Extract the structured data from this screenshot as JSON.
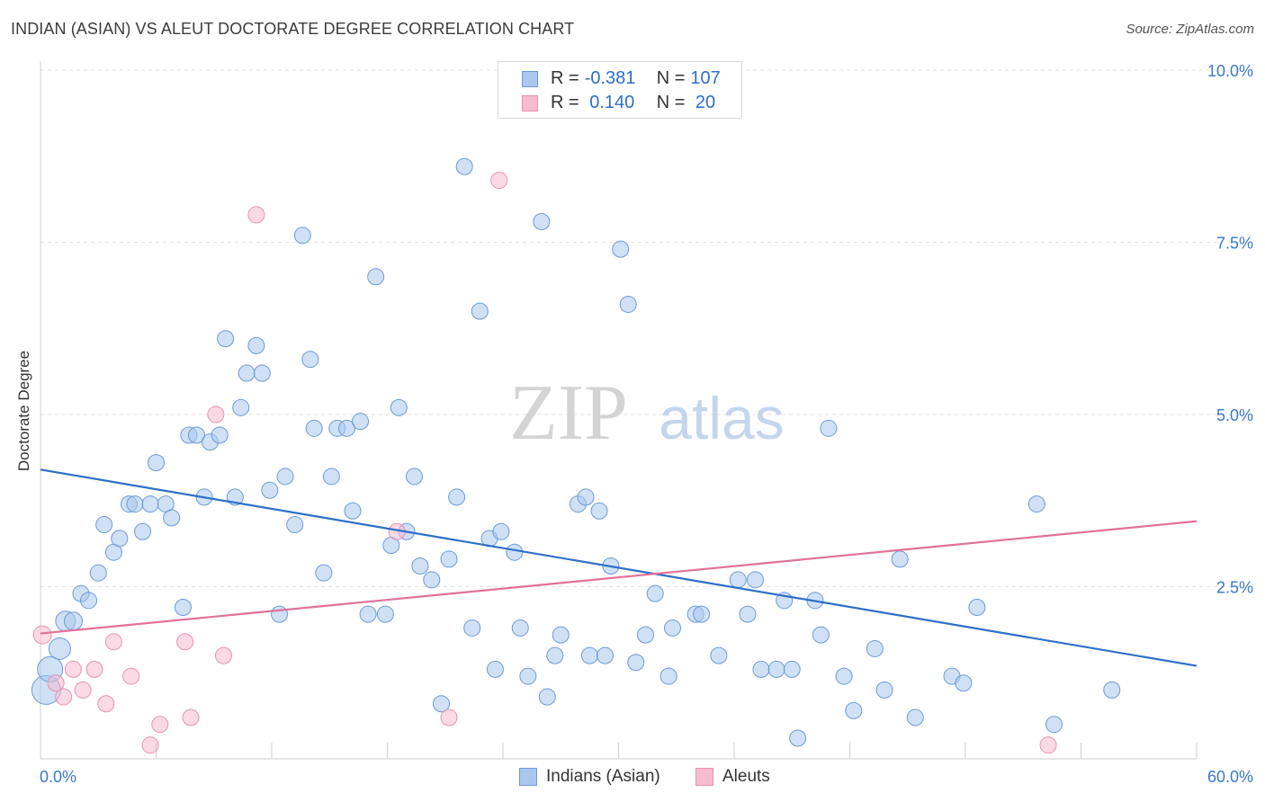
{
  "header": {
    "title": "INDIAN (ASIAN) VS ALEUT DOCTORATE DEGREE CORRELATION CHART",
    "source": "Source: ZipAtlas.com"
  },
  "watermark": {
    "zip": "ZIP",
    "atlas": "atlas"
  },
  "legend_top": {
    "rows": [
      {
        "r_label": "R = ",
        "r_value": "-0.381",
        "n_label": "N = ",
        "n_value": "107",
        "color": "#aac8ee",
        "border": "#6c9ad6"
      },
      {
        "r_label": "R = ",
        "r_value": " 0.140",
        "n_label": "N = ",
        "n_value": " 20",
        "color": "#f7bcd0",
        "border": "#e891ae"
      }
    ]
  },
  "legend_bottom": {
    "items": [
      {
        "label": "Indians (Asian)",
        "color": "#aac8ee",
        "border": "#6c9ad6"
      },
      {
        "label": "Aleuts",
        "color": "#f7bcd0",
        "border": "#e891ae"
      }
    ]
  },
  "chart_data": {
    "type": "scatter",
    "title": "INDIAN (ASIAN) VS ALEUT DOCTORATE DEGREE CORRELATION CHART",
    "xlabel": "",
    "ylabel": "Doctorate Degree",
    "xlim": [
      0,
      60
    ],
    "ylim": [
      0,
      10
    ],
    "x_tick_labels": [
      "0.0%",
      "60.0%"
    ],
    "y_tick_labels": [
      "2.5%",
      "5.0%",
      "7.5%",
      "10.0%"
    ],
    "y_ticks": [
      2.5,
      5.0,
      7.5,
      10.0
    ],
    "grid": true,
    "legend_position": "top-center",
    "series": [
      {
        "name": "Indians (Asian)",
        "color": "#aac8ee",
        "stroke": "#6c9ad6",
        "trend": {
          "x": [
            0,
            60
          ],
          "y": [
            4.2,
            1.35
          ],
          "color": "#2d6fc7"
        },
        "points": [
          [
            0.3,
            1.0,
            16
          ],
          [
            0.5,
            1.3,
            14
          ],
          [
            1.0,
            1.6,
            12
          ],
          [
            1.3,
            2.0,
            11
          ],
          [
            1.7,
            2.0,
            10
          ],
          [
            2.1,
            2.4,
            9
          ],
          [
            2.5,
            2.3,
            9
          ],
          [
            3.0,
            2.7,
            9
          ],
          [
            3.3,
            3.4,
            9
          ],
          [
            3.8,
            3.0,
            9
          ],
          [
            4.1,
            3.2,
            9
          ],
          [
            4.6,
            3.7,
            9
          ],
          [
            4.9,
            3.7,
            9
          ],
          [
            5.3,
            3.3,
            9
          ],
          [
            5.7,
            3.7,
            9
          ],
          [
            6.0,
            4.3,
            9
          ],
          [
            6.5,
            3.7,
            9
          ],
          [
            6.8,
            3.5,
            9
          ],
          [
            7.4,
            2.2,
            9
          ],
          [
            7.7,
            4.7,
            9
          ],
          [
            8.1,
            4.7,
            9
          ],
          [
            8.5,
            3.8,
            9
          ],
          [
            8.8,
            4.6,
            9
          ],
          [
            9.3,
            4.7,
            9
          ],
          [
            9.6,
            6.1,
            9
          ],
          [
            10.1,
            3.8,
            9
          ],
          [
            10.4,
            5.1,
            9
          ],
          [
            10.7,
            5.6,
            9
          ],
          [
            11.2,
            6.0,
            9
          ],
          [
            11.5,
            5.6,
            9
          ],
          [
            11.9,
            3.9,
            9
          ],
          [
            12.4,
            2.1,
            9
          ],
          [
            12.7,
            4.1,
            9
          ],
          [
            13.2,
            3.4,
            9
          ],
          [
            13.6,
            7.6,
            9
          ],
          [
            14.0,
            5.8,
            9
          ],
          [
            14.2,
            4.8,
            9
          ],
          [
            14.7,
            2.7,
            9
          ],
          [
            15.1,
            4.1,
            9
          ],
          [
            15.4,
            4.8,
            9
          ],
          [
            15.9,
            4.8,
            9
          ],
          [
            16.2,
            3.6,
            9
          ],
          [
            16.6,
            4.9,
            9
          ],
          [
            17.0,
            2.1,
            9
          ],
          [
            17.4,
            7.0,
            9
          ],
          [
            17.9,
            2.1,
            9
          ],
          [
            18.2,
            3.1,
            9
          ],
          [
            18.6,
            5.1,
            9
          ],
          [
            19.0,
            3.3,
            9
          ],
          [
            19.4,
            4.1,
            9
          ],
          [
            19.7,
            2.8,
            9
          ],
          [
            20.3,
            2.6,
            9
          ],
          [
            20.8,
            0.8,
            9
          ],
          [
            21.2,
            2.9,
            9
          ],
          [
            21.6,
            3.8,
            9
          ],
          [
            22.0,
            8.6,
            9
          ],
          [
            22.4,
            1.9,
            9
          ],
          [
            22.8,
            6.5,
            9
          ],
          [
            23.3,
            3.2,
            9
          ],
          [
            23.6,
            1.3,
            9
          ],
          [
            23.9,
            3.3,
            9
          ],
          [
            24.6,
            3.0,
            9
          ],
          [
            24.9,
            1.9,
            9
          ],
          [
            25.3,
            1.2,
            9
          ],
          [
            26.0,
            7.8,
            9
          ],
          [
            26.3,
            0.9,
            9
          ],
          [
            26.7,
            1.5,
            9
          ],
          [
            27.0,
            1.8,
            9
          ],
          [
            27.9,
            3.7,
            9
          ],
          [
            28.3,
            3.8,
            9
          ],
          [
            28.5,
            1.5,
            9
          ],
          [
            29.0,
            3.6,
            9
          ],
          [
            29.3,
            1.5,
            9
          ],
          [
            29.6,
            2.8,
            9
          ],
          [
            30.1,
            7.4,
            9
          ],
          [
            30.5,
            6.6,
            9
          ],
          [
            30.9,
            1.4,
            9
          ],
          [
            31.4,
            1.8,
            9
          ],
          [
            31.9,
            2.4,
            9
          ],
          [
            32.6,
            1.2,
            9
          ],
          [
            32.8,
            1.9,
            9
          ],
          [
            34.0,
            2.1,
            9
          ],
          [
            34.3,
            2.1,
            9
          ],
          [
            35.2,
            1.5,
            9
          ],
          [
            36.2,
            2.6,
            9
          ],
          [
            36.7,
            2.1,
            9
          ],
          [
            37.1,
            2.6,
            9
          ],
          [
            37.4,
            1.3,
            9
          ],
          [
            38.2,
            1.3,
            9
          ],
          [
            38.6,
            2.3,
            9
          ],
          [
            39.0,
            1.3,
            9
          ],
          [
            39.3,
            0.3,
            9
          ],
          [
            40.2,
            2.3,
            9
          ],
          [
            40.5,
            1.8,
            9
          ],
          [
            40.9,
            4.8,
            9
          ],
          [
            41.7,
            1.2,
            9
          ],
          [
            42.2,
            0.7,
            9
          ],
          [
            43.3,
            1.6,
            9
          ],
          [
            43.8,
            1.0,
            9
          ],
          [
            44.6,
            2.9,
            9
          ],
          [
            45.4,
            0.6,
            9
          ],
          [
            47.3,
            1.2,
            9
          ],
          [
            47.9,
            1.1,
            9
          ],
          [
            48.6,
            2.2,
            9
          ],
          [
            51.7,
            3.7,
            9
          ],
          [
            52.6,
            0.5,
            9
          ],
          [
            55.6,
            1.0,
            9
          ]
        ]
      },
      {
        "name": "Aleuts",
        "color": "#f7bcd0",
        "stroke": "#e891ae",
        "trend": {
          "x": [
            0,
            60
          ],
          "y": [
            1.82,
            3.45
          ],
          "color": "#e07199"
        },
        "points": [
          [
            0.1,
            1.8,
            10
          ],
          [
            0.8,
            1.1,
            9
          ],
          [
            1.2,
            0.9,
            9
          ],
          [
            1.7,
            1.3,
            9
          ],
          [
            2.2,
            1.0,
            9
          ],
          [
            2.8,
            1.3,
            9
          ],
          [
            3.4,
            0.8,
            9
          ],
          [
            3.8,
            1.7,
            9
          ],
          [
            4.7,
            1.2,
            9
          ],
          [
            5.7,
            0.2,
            9
          ],
          [
            6.2,
            0.5,
            9
          ],
          [
            7.5,
            1.7,
            9
          ],
          [
            7.8,
            0.6,
            9
          ],
          [
            9.1,
            5.0,
            9
          ],
          [
            9.5,
            1.5,
            9
          ],
          [
            11.2,
            7.9,
            9
          ],
          [
            18.5,
            3.3,
            9
          ],
          [
            21.2,
            0.6,
            9
          ],
          [
            23.8,
            8.4,
            9
          ],
          [
            52.3,
            0.2,
            9
          ]
        ]
      }
    ]
  }
}
